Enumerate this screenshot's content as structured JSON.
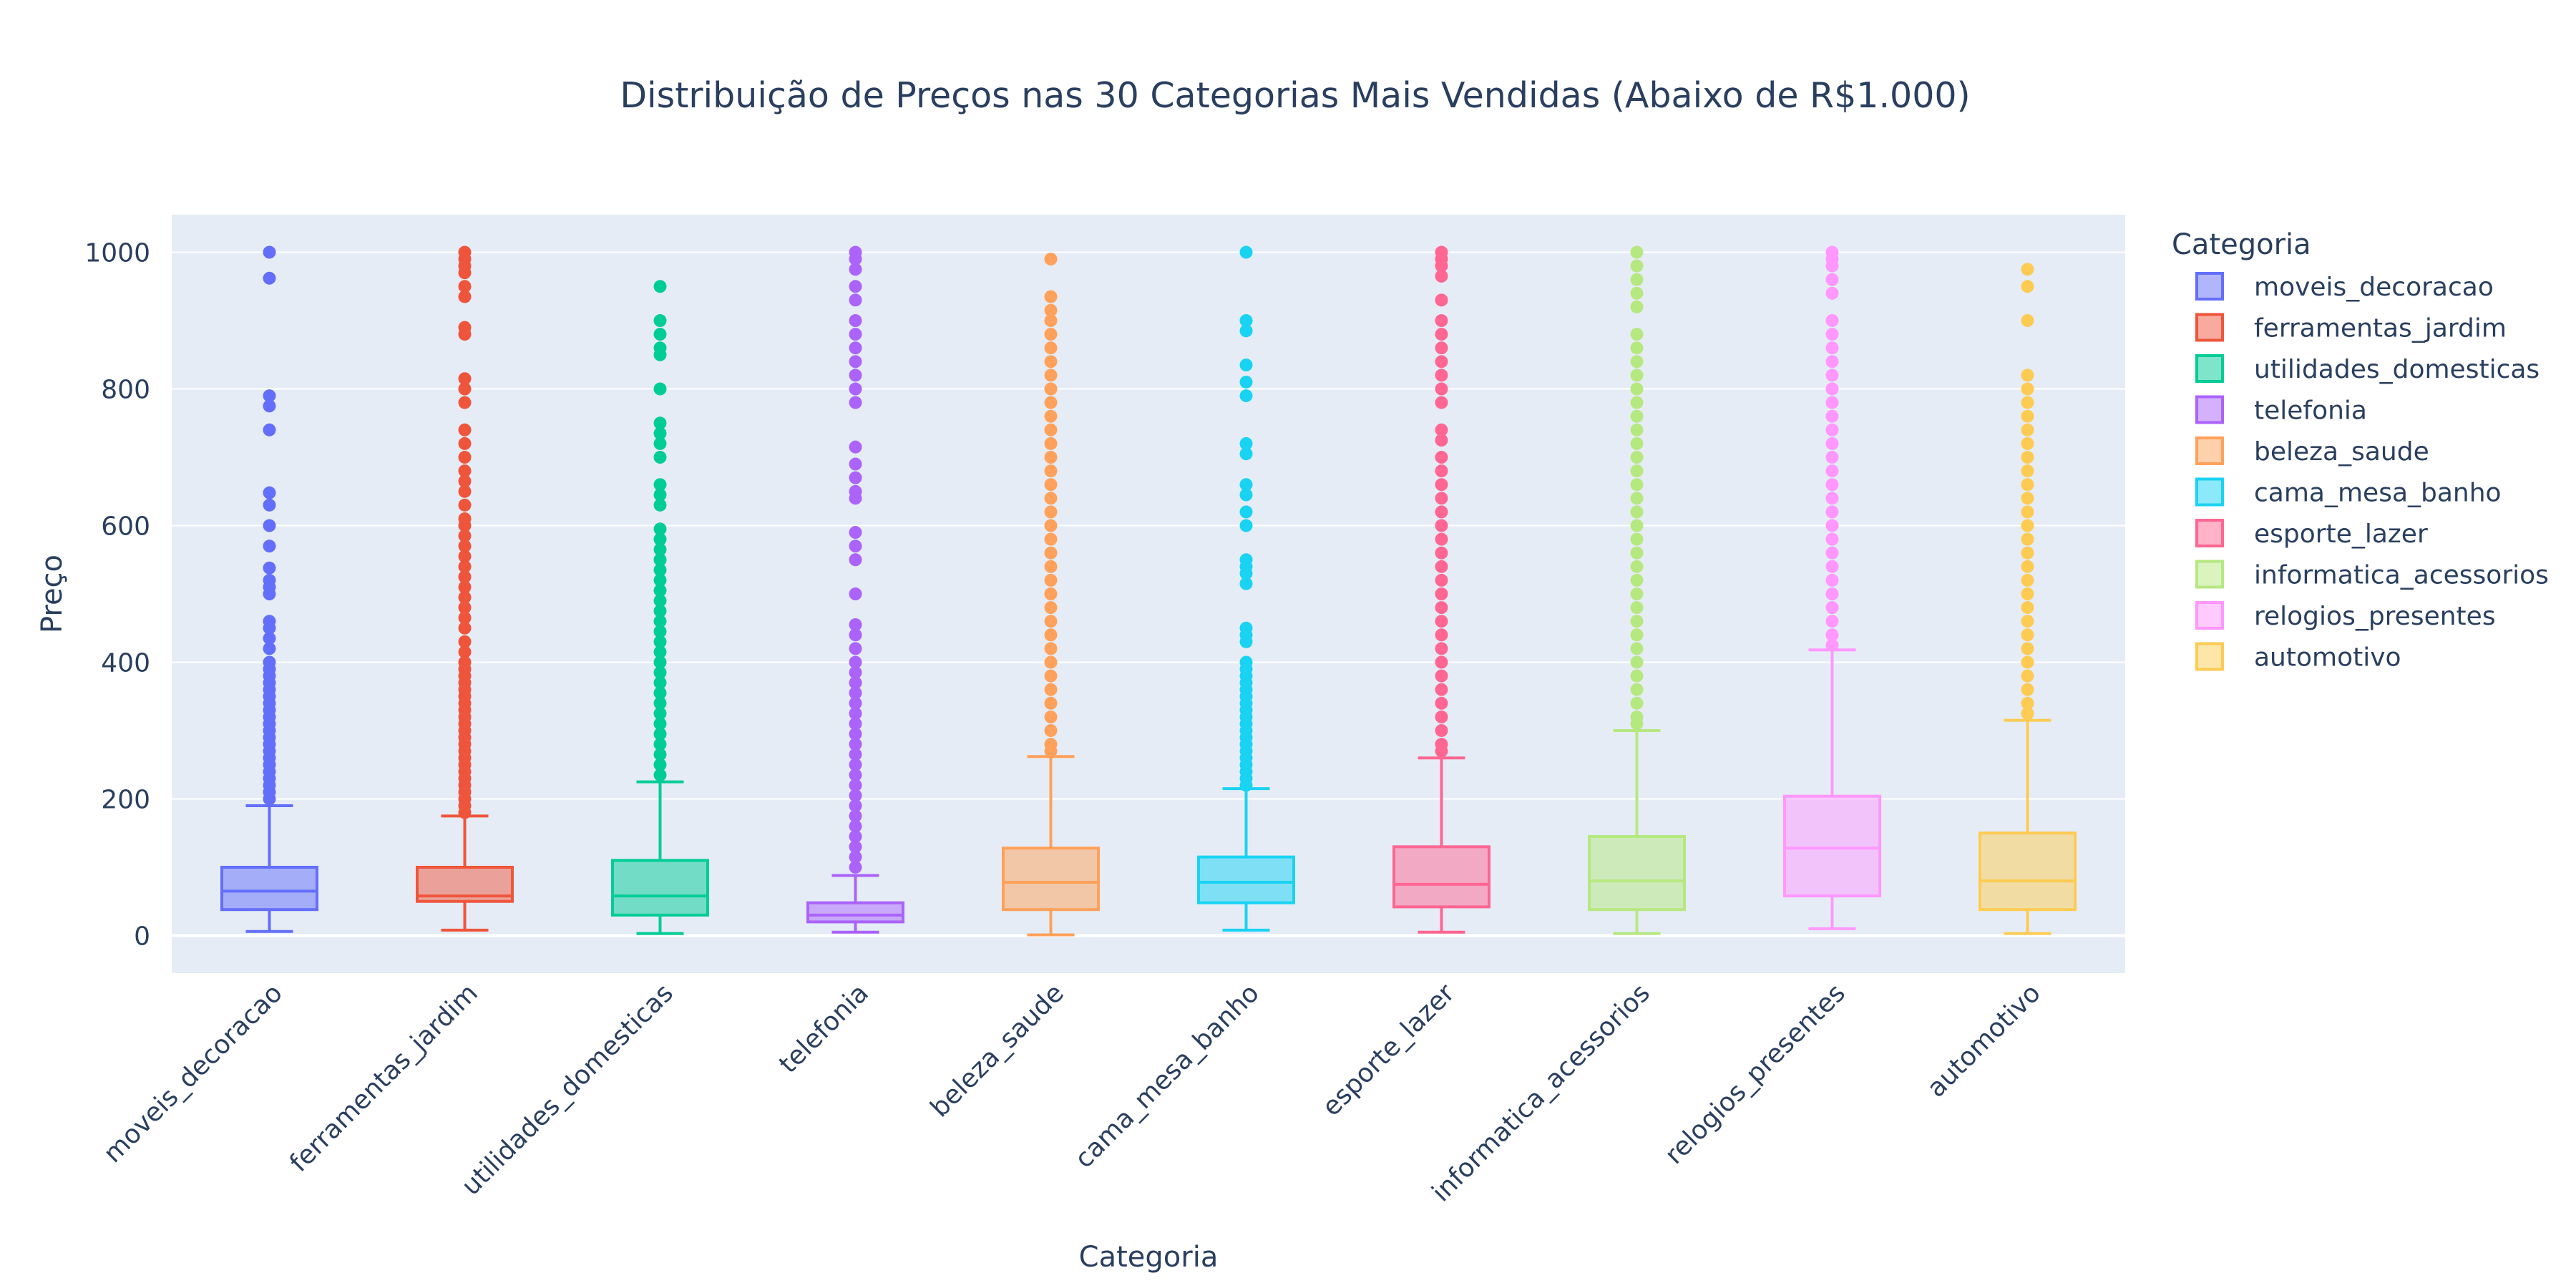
{
  "chart_data": {
    "type": "box",
    "title": "Distribuição de Preços nas 30 Categorias Mais Vendidas (Abaixo de R$1.000)",
    "xlabel": "Categoria",
    "ylabel": "Preço",
    "ylim": [
      -55,
      1055
    ],
    "yticks": [
      0,
      200,
      400,
      600,
      800,
      1000
    ],
    "grid": true,
    "legend": {
      "title": "Categoria",
      "position": "right"
    },
    "series": [
      {
        "name": "moveis_decoracao",
        "color": "#636efa",
        "lowerfence": 6,
        "q1": 38,
        "median": 65,
        "q3": 100,
        "upperfence": 190,
        "outliers": [
          1000,
          962,
          790,
          775,
          740,
          648,
          630,
          600,
          570,
          538,
          520,
          510,
          500,
          460,
          450,
          435,
          420,
          400,
          390,
          380,
          370,
          360,
          350,
          340,
          330,
          320,
          310,
          300,
          290,
          280,
          270,
          260,
          250,
          240,
          230,
          220,
          210,
          200
        ]
      },
      {
        "name": "ferramentas_jardim",
        "color": "#ef553b",
        "lowerfence": 8,
        "q1": 50,
        "median": 58,
        "q3": 100,
        "upperfence": 175,
        "outliers": [
          1000,
          990,
          980,
          970,
          950,
          935,
          890,
          880,
          815,
          800,
          780,
          740,
          720,
          700,
          680,
          665,
          650,
          630,
          610,
          600,
          585,
          570,
          555,
          540,
          525,
          510,
          495,
          480,
          465,
          450,
          430,
          415,
          400,
          390,
          380,
          370,
          360,
          350,
          340,
          330,
          320,
          310,
          300,
          290,
          280,
          270,
          260,
          250,
          240,
          230,
          220,
          210,
          200,
          190,
          180
        ]
      },
      {
        "name": "utilidades_domesticas",
        "color": "#00cc96",
        "lowerfence": 3,
        "q1": 30,
        "median": 58,
        "q3": 110,
        "upperfence": 225,
        "outliers": [
          950,
          900,
          880,
          860,
          850,
          800,
          750,
          735,
          720,
          700,
          660,
          645,
          630,
          595,
          580,
          565,
          550,
          535,
          520,
          505,
          490,
          475,
          460,
          445,
          430,
          415,
          400,
          385,
          370,
          355,
          340,
          325,
          310,
          295,
          280,
          265,
          250,
          235
        ]
      },
      {
        "name": "telefonia",
        "color": "#ab63fa",
        "lowerfence": 5,
        "q1": 20,
        "median": 30,
        "q3": 48,
        "upperfence": 88,
        "outliers": [
          1000,
          990,
          975,
          950,
          930,
          900,
          880,
          860,
          840,
          820,
          800,
          780,
          715,
          690,
          670,
          650,
          640,
          590,
          570,
          550,
          500,
          455,
          440,
          420,
          400,
          385,
          370,
          355,
          340,
          325,
          310,
          295,
          280,
          265,
          250,
          235,
          220,
          205,
          190,
          175,
          160,
          145,
          130,
          115,
          100
        ]
      },
      {
        "name": "beleza_saude",
        "color": "#ffa15a",
        "lowerfence": 1,
        "q1": 38,
        "median": 78,
        "q3": 128,
        "upperfence": 262,
        "outliers": [
          990,
          935,
          915,
          900,
          880,
          860,
          840,
          820,
          800,
          780,
          760,
          740,
          720,
          700,
          680,
          660,
          640,
          620,
          600,
          580,
          560,
          540,
          520,
          500,
          480,
          460,
          440,
          420,
          400,
          380,
          360,
          340,
          320,
          300,
          280,
          270
        ]
      },
      {
        "name": "cama_mesa_banho",
        "color": "#19d3f3",
        "lowerfence": 8,
        "q1": 48,
        "median": 78,
        "q3": 115,
        "upperfence": 215,
        "outliers": [
          1000,
          900,
          885,
          835,
          810,
          790,
          720,
          705,
          660,
          645,
          620,
          600,
          550,
          540,
          530,
          515,
          450,
          440,
          430,
          400,
          390,
          380,
          370,
          360,
          350,
          340,
          330,
          320,
          310,
          300,
          290,
          280,
          270,
          260,
          250,
          240,
          230,
          220
        ]
      },
      {
        "name": "esporte_lazer",
        "color": "#ff6692",
        "lowerfence": 5,
        "q1": 42,
        "median": 75,
        "q3": 130,
        "upperfence": 260,
        "outliers": [
          1000,
          990,
          980,
          965,
          930,
          900,
          880,
          860,
          840,
          820,
          800,
          780,
          740,
          725,
          700,
          680,
          660,
          640,
          620,
          600,
          580,
          560,
          540,
          520,
          500,
          480,
          460,
          440,
          420,
          400,
          380,
          360,
          340,
          320,
          300,
          280,
          270
        ]
      },
      {
        "name": "informatica_acessorios",
        "color": "#b6e880",
        "lowerfence": 3,
        "q1": 38,
        "median": 80,
        "q3": 145,
        "upperfence": 300,
        "outliers": [
          1000,
          980,
          960,
          940,
          920,
          880,
          860,
          840,
          820,
          800,
          780,
          760,
          740,
          720,
          700,
          680,
          660,
          640,
          620,
          600,
          580,
          560,
          540,
          520,
          500,
          480,
          460,
          440,
          420,
          400,
          380,
          360,
          340,
          320,
          310
        ]
      },
      {
        "name": "relogios_presentes",
        "color": "#ff97ff",
        "lowerfence": 10,
        "q1": 58,
        "median": 128,
        "q3": 204,
        "upperfence": 418,
        "outliers": [
          1000,
          990,
          980,
          960,
          940,
          900,
          880,
          860,
          840,
          820,
          800,
          780,
          760,
          740,
          720,
          700,
          680,
          660,
          640,
          620,
          600,
          580,
          560,
          540,
          520,
          500,
          480,
          460,
          440,
          425
        ]
      },
      {
        "name": "automotivo",
        "color": "#fecb52",
        "lowerfence": 3,
        "q1": 38,
        "median": 80,
        "q3": 150,
        "upperfence": 315,
        "outliers": [
          975,
          950,
          900,
          820,
          800,
          780,
          760,
          740,
          720,
          700,
          680,
          660,
          640,
          620,
          600,
          580,
          560,
          540,
          520,
          500,
          480,
          460,
          440,
          420,
          400,
          380,
          360,
          340,
          325
        ]
      }
    ]
  }
}
